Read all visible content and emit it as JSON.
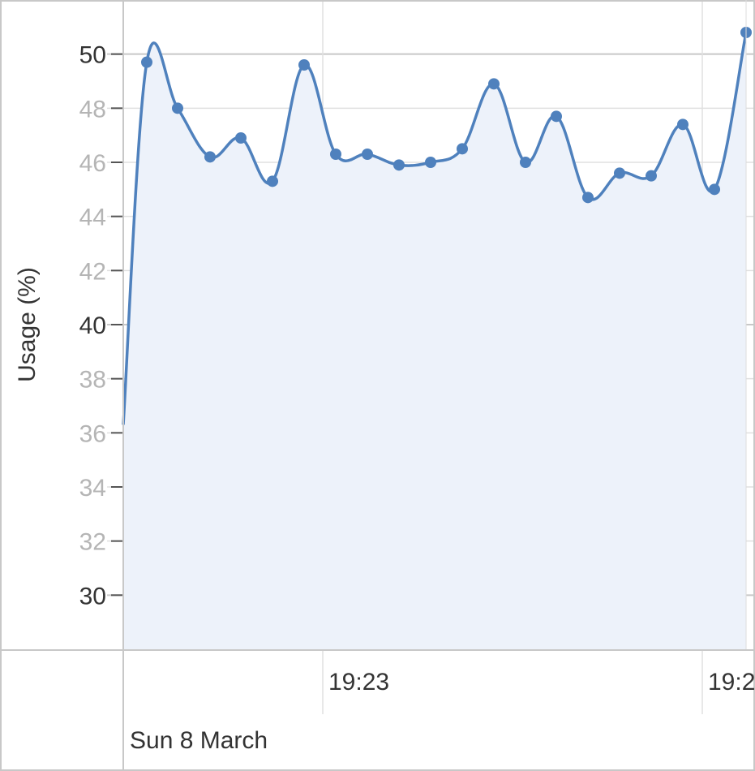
{
  "chart_data": {
    "type": "area",
    "ylabel": "Usage (%)",
    "ylim": [
      28,
      52
    ],
    "y_ticks": [
      30,
      32,
      34,
      36,
      38,
      40,
      42,
      44,
      46,
      48,
      50
    ],
    "y_major_ticks": [
      30,
      40,
      50
    ],
    "x_tick_labels": [
      "19:23",
      "19:2"
    ],
    "date_label": "Sun 8 March",
    "grid": true,
    "colors": {
      "line": "#4f81bd",
      "fill": "#edf2fa",
      "grid": "#e0e0e0",
      "grid_major": "#c8c8c8"
    },
    "series": [
      {
        "values": [
          36.3,
          49.7,
          48.0,
          46.2,
          46.9,
          45.3,
          49.6,
          46.3,
          46.3,
          45.9,
          46.0,
          46.5,
          48.9,
          46.0,
          47.7,
          44.7,
          45.6,
          45.5,
          47.4,
          45.0,
          50.8
        ]
      }
    ]
  }
}
